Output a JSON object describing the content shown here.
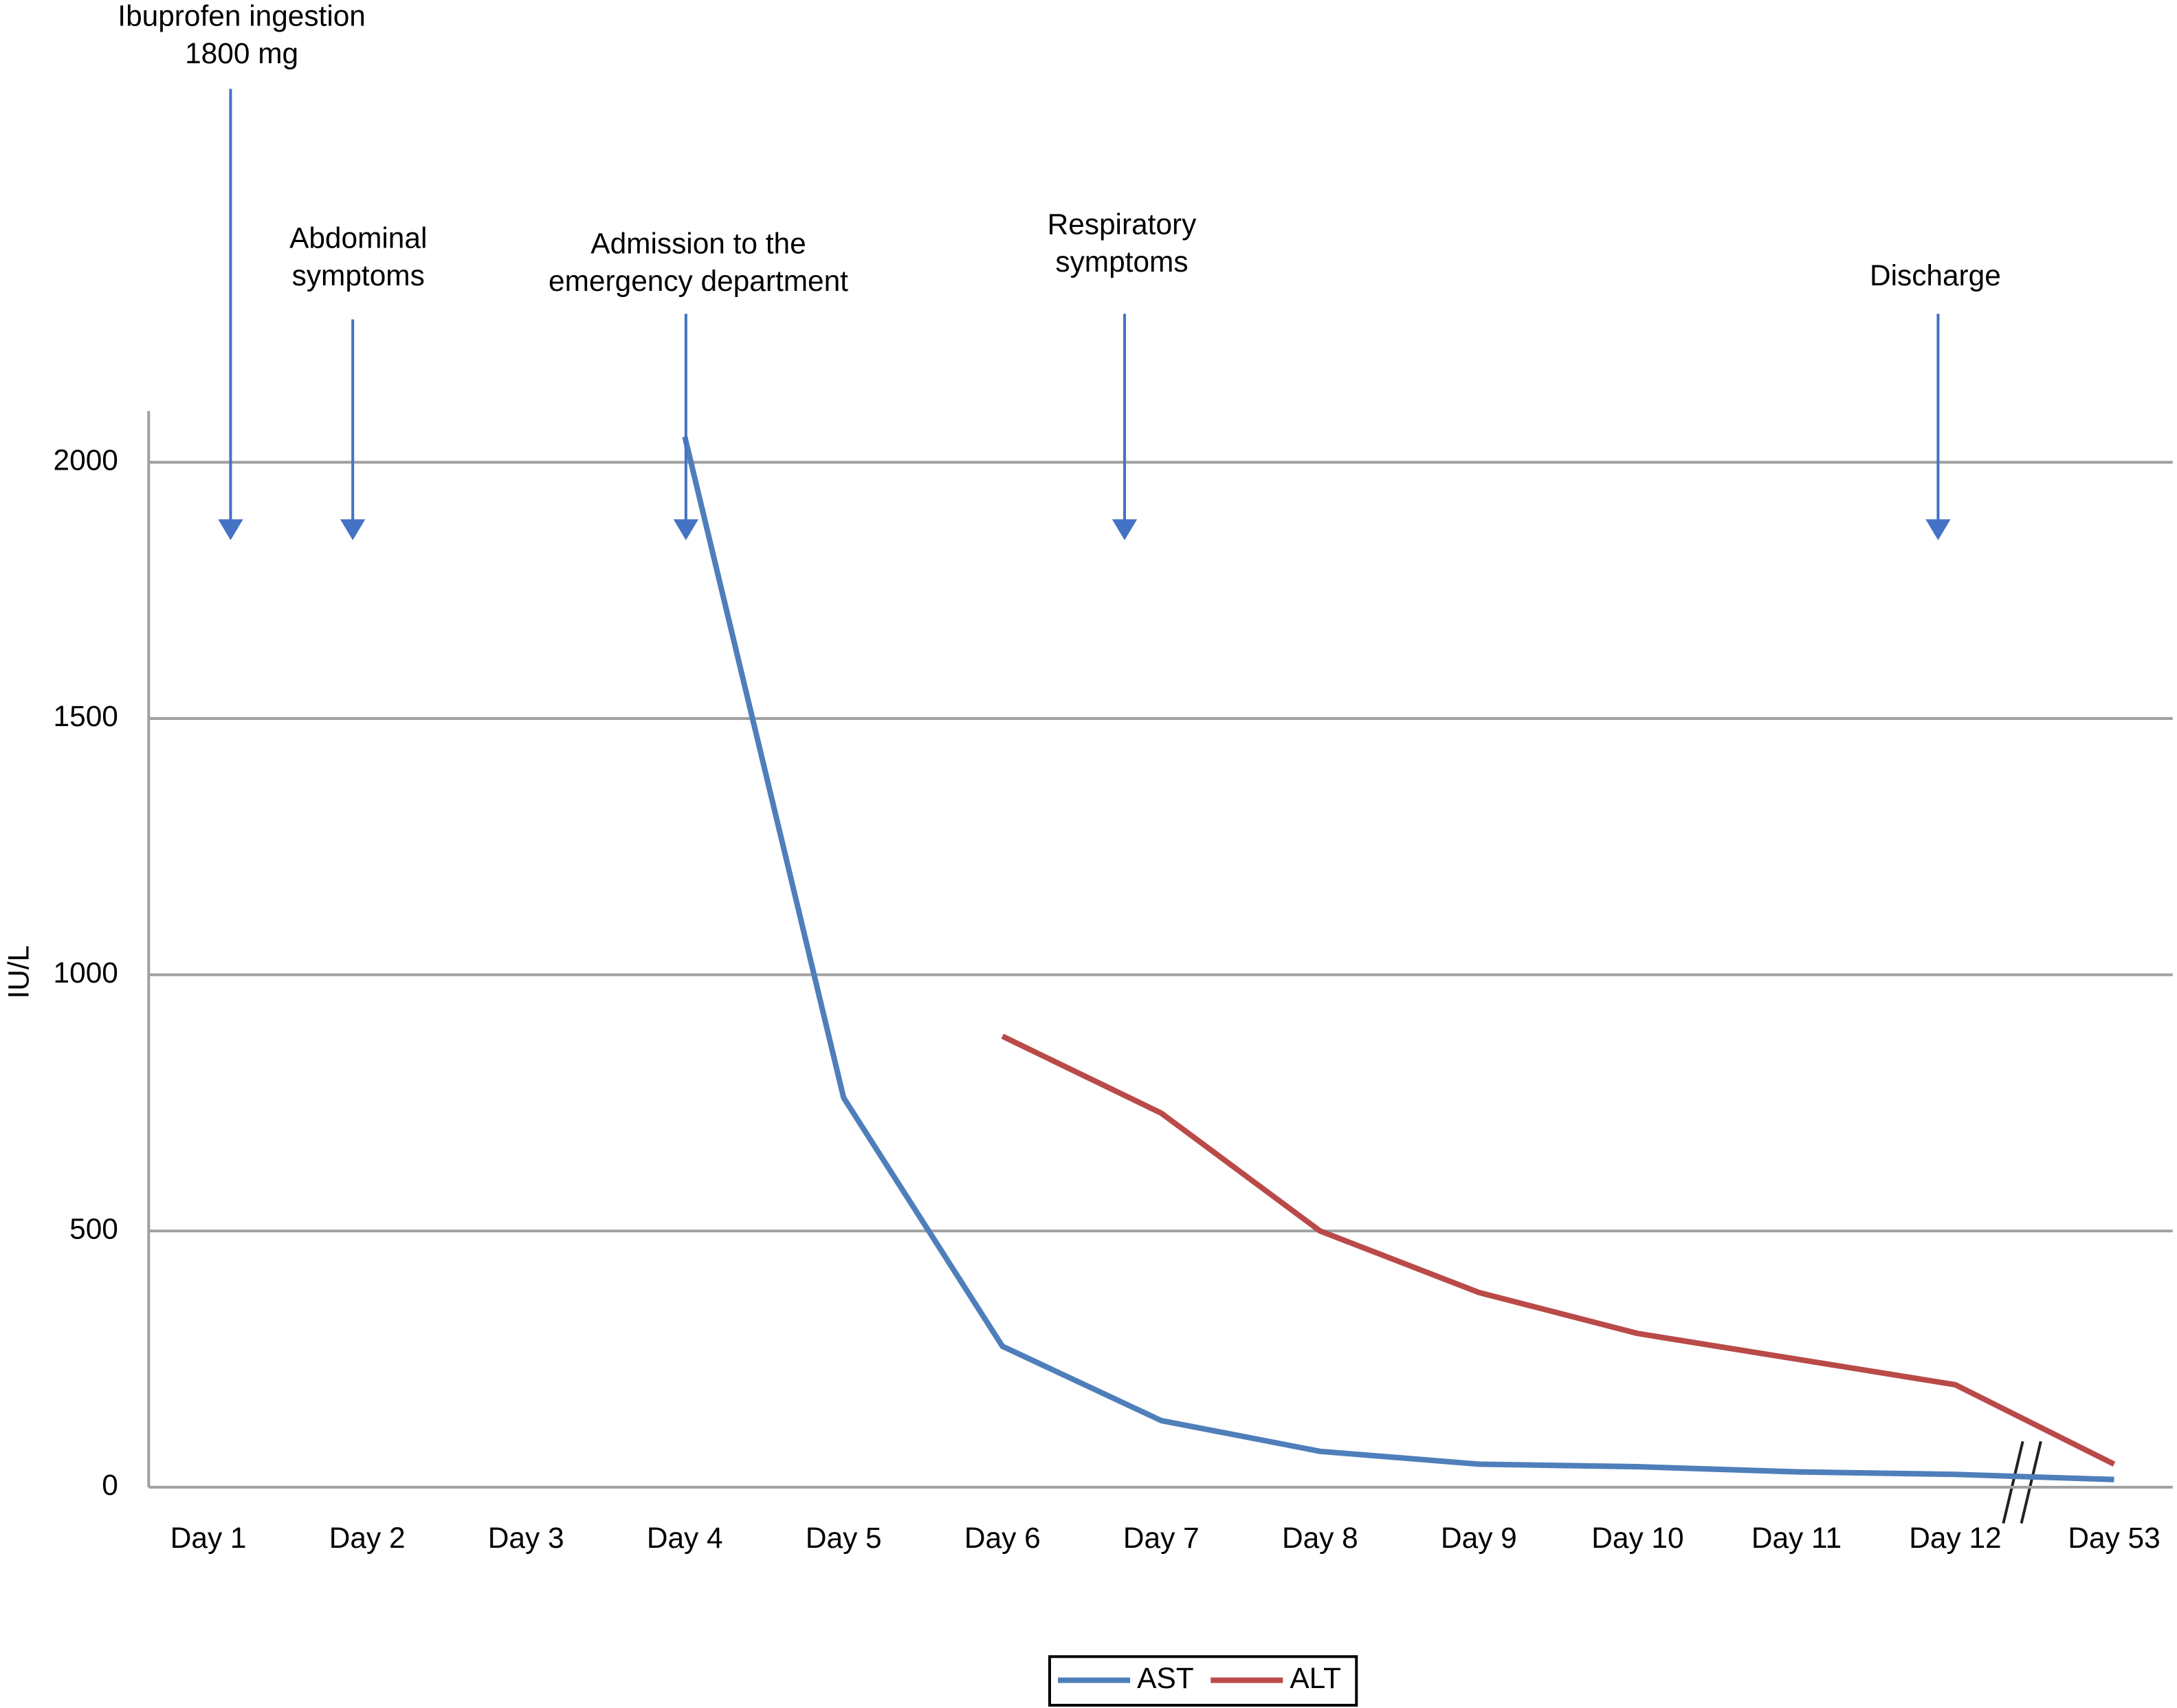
{
  "chart_data": {
    "type": "line",
    "y_label": "IU/L",
    "categories": [
      "Day 1",
      "Day 2",
      "Day 3",
      "Day 4",
      "Day 5",
      "Day 6",
      "Day 7",
      "Day 8",
      "Day 9",
      "Day 10",
      "Day 11",
      "Day 12",
      "Day 53"
    ],
    "series": [
      {
        "name": "AST",
        "color": "#4f7fba",
        "values": [
          null,
          null,
          null,
          2050,
          760,
          275,
          130,
          70,
          45,
          40,
          30,
          25,
          15
        ]
      },
      {
        "name": "ALT",
        "color": "#b94a48",
        "values": [
          null,
          null,
          null,
          null,
          null,
          880,
          730,
          500,
          380,
          300,
          250,
          200,
          45
        ]
      }
    ],
    "ylim": [
      0,
      2100
    ],
    "yticks": [
      0,
      500,
      1000,
      1500,
      2000
    ],
    "grid": true,
    "annotations": [
      {
        "lines": [
          "Ibuprofen ingestion",
          "1800 mg"
        ]
      },
      {
        "lines": [
          "Abdominal",
          "symptoms"
        ]
      },
      {
        "lines": [
          "Admission to the",
          "emergency department"
        ]
      },
      {
        "lines": [
          "Respiratory",
          "symptoms"
        ]
      },
      {
        "lines": [
          "Discharge"
        ]
      }
    ]
  }
}
